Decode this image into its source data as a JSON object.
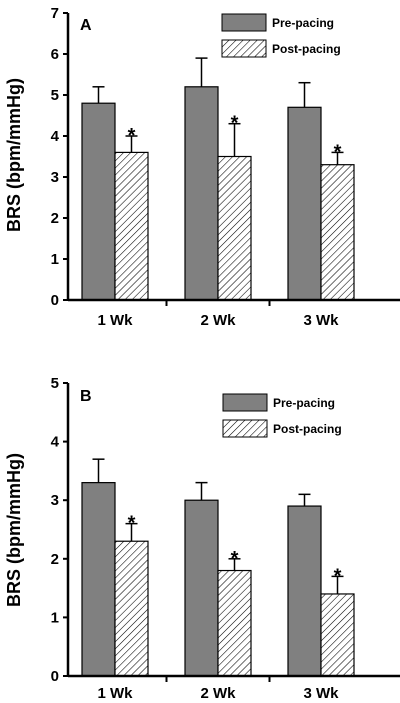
{
  "chart_data": [
    {
      "type": "bar",
      "panel_label": "A",
      "ylabel": "BRS (bpm/mmHg)",
      "ylim": [
        0,
        7
      ],
      "yticks": [
        0,
        1,
        2,
        3,
        4,
        5,
        6,
        7
      ],
      "categories": [
        "1 Wk",
        "2 Wk",
        "3 Wk"
      ],
      "series": [
        {
          "name": "Pre-pacing",
          "values": [
            4.8,
            5.2,
            4.7
          ],
          "errors": [
            0.4,
            0.7,
            0.6
          ],
          "color": "#808080",
          "pattern": "solid"
        },
        {
          "name": "Post-pacing",
          "values": [
            3.6,
            3.5,
            3.3
          ],
          "errors": [
            0.4,
            0.8,
            0.3
          ],
          "color": "#ffffff",
          "pattern": "hatched"
        }
      ],
      "significance": [
        {
          "series": "Post-pacing",
          "category": "1 Wk",
          "mark": "*"
        },
        {
          "series": "Post-pacing",
          "category": "2 Wk",
          "mark": "*"
        },
        {
          "series": "Post-pacing",
          "category": "3 Wk",
          "mark": "*"
        }
      ],
      "legend_position": "top-right",
      "grid": false
    },
    {
      "type": "bar",
      "panel_label": "B",
      "ylabel": "BRS (bpm/mmHg)",
      "ylim": [
        0,
        5
      ],
      "yticks": [
        0,
        1,
        2,
        3,
        4,
        5
      ],
      "categories": [
        "1 Wk",
        "2 Wk",
        "3 Wk"
      ],
      "series": [
        {
          "name": "Pre-pacing",
          "values": [
            3.3,
            3.0,
            2.9
          ],
          "errors": [
            0.4,
            0.3,
            0.2
          ],
          "color": "#808080",
          "pattern": "solid"
        },
        {
          "name": "Post-pacing",
          "values": [
            2.3,
            1.8,
            1.4
          ],
          "errors": [
            0.3,
            0.2,
            0.3
          ],
          "color": "#ffffff",
          "pattern": "hatched"
        }
      ],
      "significance": [
        {
          "series": "Post-pacing",
          "category": "1 Wk",
          "mark": "*"
        },
        {
          "series": "Post-pacing",
          "category": "2 Wk",
          "mark": "*"
        },
        {
          "series": "Post-pacing",
          "category": "3 Wk",
          "mark": "*"
        }
      ],
      "legend_position": "top-right",
      "grid": false
    }
  ]
}
